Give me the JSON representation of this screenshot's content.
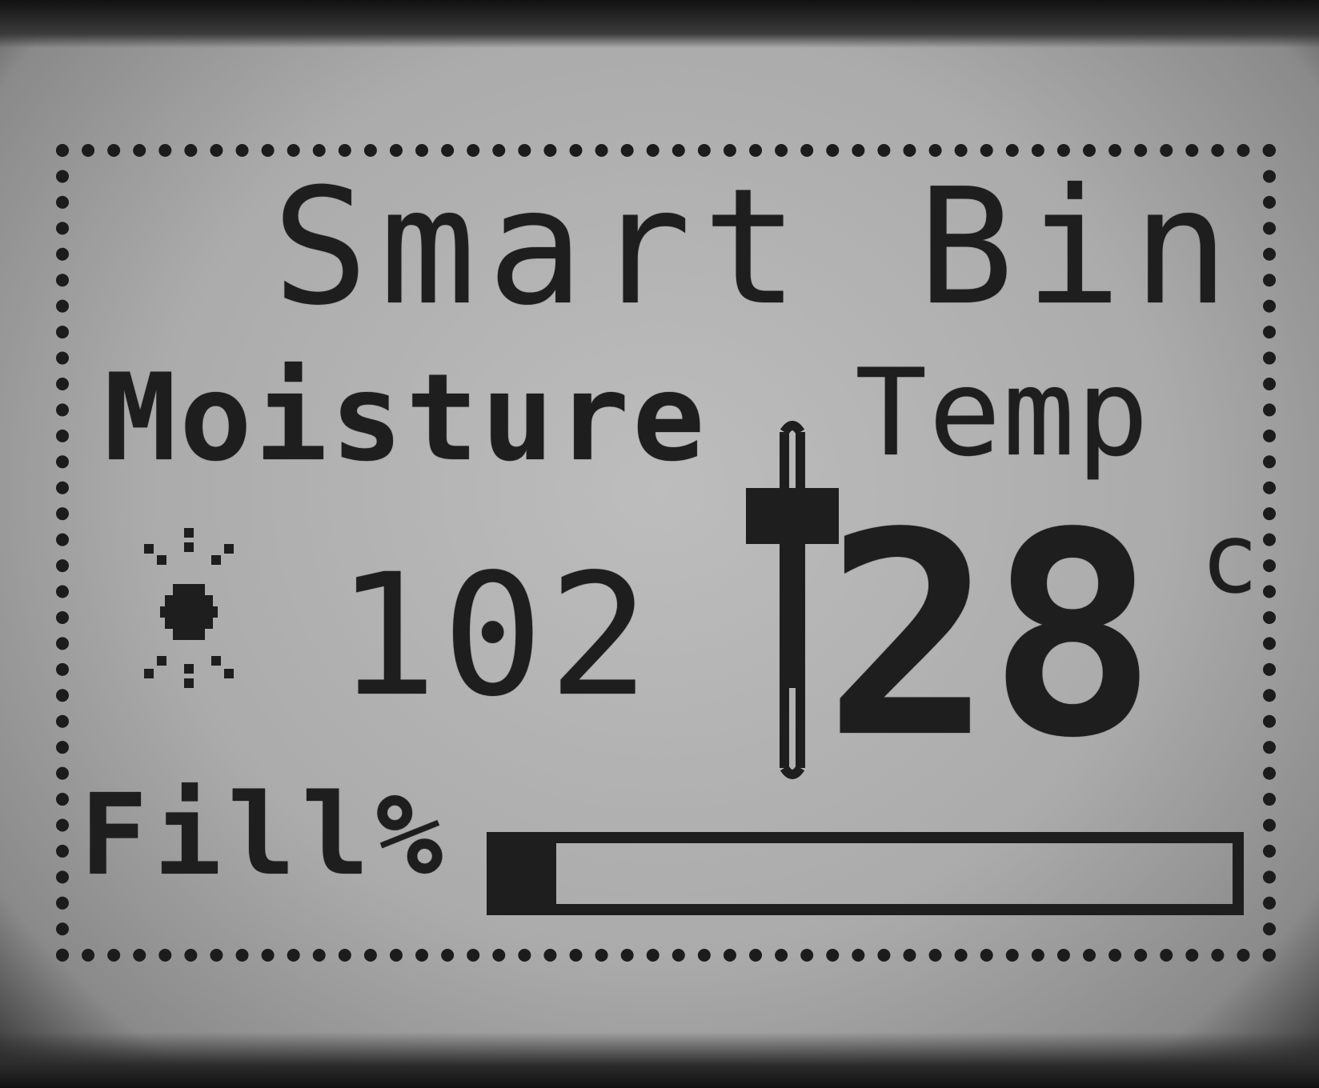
{
  "screen": {
    "title": "Smart Bin",
    "moisture": {
      "label": "Moisture",
      "value": "102",
      "icon": "sun-icon"
    },
    "temperature": {
      "label": "Temp",
      "value": "28",
      "unit": "c",
      "icon": "thermometer-icon"
    },
    "fill": {
      "label": "Fill%",
      "level": 0.08
    }
  },
  "colors": {
    "lcd_background": "#ababab",
    "lcd_pixel": "#1e1e1e"
  }
}
